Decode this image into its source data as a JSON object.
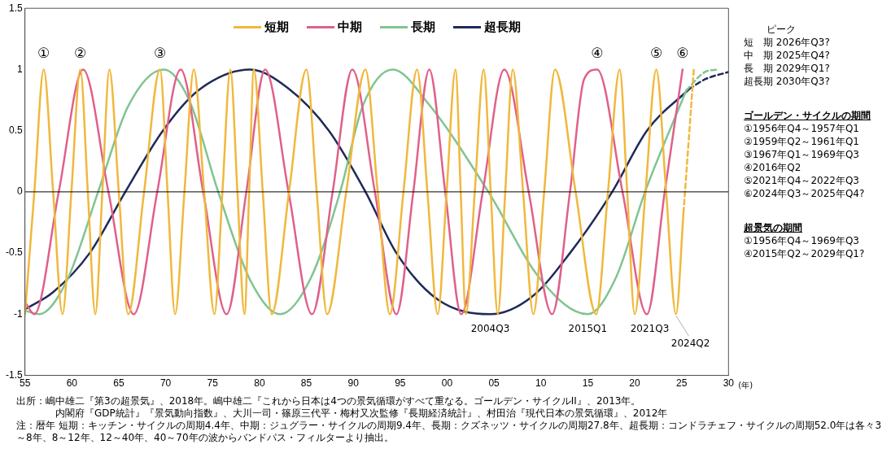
{
  "chart_data": {
    "type": "line",
    "xlabel": "(年)",
    "xlim": [
      1955,
      2030
    ],
    "xticks": [
      {
        "value": 1955,
        "label": "55"
      },
      {
        "value": 1960,
        "label": "60"
      },
      {
        "value": 1965,
        "label": "65"
      },
      {
        "value": 1970,
        "label": "70"
      },
      {
        "value": 1975,
        "label": "75"
      },
      {
        "value": 1980,
        "label": "80"
      },
      {
        "value": 1985,
        "label": "85"
      },
      {
        "value": 1990,
        "label": "90"
      },
      {
        "value": 1995,
        "label": "95"
      },
      {
        "value": 2000,
        "label": "00"
      },
      {
        "value": 2005,
        "label": "05"
      },
      {
        "value": 2010,
        "label": "10"
      },
      {
        "value": 2015,
        "label": "15"
      },
      {
        "value": 2020,
        "label": "20"
      },
      {
        "value": 2025,
        "label": "25"
      },
      {
        "value": 2030,
        "label": "30"
      }
    ],
    "ylim": [
      -1.5,
      1.5
    ],
    "yticks": [
      -1.5,
      -1,
      -0.5,
      0,
      0.5,
      1,
      1.5
    ],
    "grid": false,
    "legend": "top",
    "marker": "none",
    "ref_lines": [
      {
        "axis": "y",
        "value": 0,
        "color": "#000000"
      }
    ],
    "series": [
      {
        "name": "短期",
        "color": "#f0b83c",
        "x": [
          1955,
          1956,
          1957,
          1958,
          1959,
          1959.95,
          1960.9,
          1961.7,
          1962.5,
          1963.25,
          1964,
          1965,
          1966,
          1967.7,
          1969.4,
          1970.2,
          1971,
          1972,
          1973,
          1974.1,
          1975.2,
          1976.05,
          1976.9,
          1977.65,
          1978.4,
          1978.9,
          1979.4,
          1980.35,
          1981.3,
          1983.15,
          1985,
          1986.1,
          1987.2,
          1989.25,
          1991.3,
          1992.6,
          1993.9,
          1995.35,
          1996.8,
          1997.9,
          1999,
          1999.95,
          2000.9,
          2001.45,
          2002,
          2002.95,
          2003.9,
          2004.65,
          2005.4,
          2006.2,
          2007,
          2008.1,
          2009.2,
          2010.35,
          2011.5,
          2013.7,
          2015.9,
          2017.15,
          2018.4,
          2019.2,
          2020,
          2021.15,
          2022.3,
          2023.35,
          2024.4,
          2025.2
        ],
        "values": [
          -1,
          0,
          1,
          0,
          -1,
          0,
          1,
          0,
          -1,
          0,
          1,
          0,
          -1,
          0,
          1,
          0,
          -1,
          0,
          1,
          0,
          -1,
          0,
          1,
          0,
          -1,
          0,
          1,
          0,
          -1,
          0,
          1,
          0,
          -1,
          0,
          1,
          0,
          -1,
          0,
          1,
          0,
          -1,
          0,
          1,
          0,
          -1,
          0,
          1,
          0,
          -1,
          0,
          1,
          0,
          -1,
          0,
          1,
          0,
          -1,
          0,
          1,
          0,
          -1,
          0,
          1,
          0,
          -1,
          -0.17
        ]
      },
      {
        "color": "#f0b83c",
        "line_style": "dashed",
        "x": [
          2025.2,
          2026.3
        ],
        "values": [
          -0.17,
          1
        ]
      },
      {
        "name": "中期",
        "color": "#e0608a",
        "x": [
          1955,
          1956,
          1958.6,
          1961.2,
          1963.9,
          1966.6,
          1969.1,
          1971.6,
          1974,
          1976.5,
          1978.6,
          1980.6,
          1983.1,
          1985.6,
          1987.8,
          1989.9,
          1992.3,
          1994.6,
          1996.4,
          1998.1,
          1999.8,
          2001.5,
          2003.8,
          2006.1,
          2008.7,
          2011.2,
          2013.1,
          2014.6,
          2016,
          2018.7,
          2021.3,
          2023.2,
          2025.1
        ],
        "values": [
          -0.9,
          -1,
          0,
          1,
          0,
          -1,
          0,
          1,
          0,
          -1,
          0,
          1,
          0,
          -1,
          0,
          1,
          0,
          -1,
          0,
          1,
          0,
          -1,
          0,
          1,
          0,
          -1,
          0,
          0.92,
          1,
          0,
          -1,
          0,
          1
        ]
      },
      {
        "name": "長期",
        "color": "#80c490",
        "x": [
          1955,
          1956.5,
          1959.5,
          1962.8,
          1966,
          1969.8,
          1972.5,
          1975.6,
          1979,
          1982.2,
          1985.5,
          1988.6,
          1991,
          1994.2,
          1998,
          2004.4,
          2010,
          2015,
          2018,
          2021.1,
          2025.5
        ],
        "values": [
          -0.97,
          -1,
          -0.72,
          0,
          0.7,
          1,
          0.75,
          0,
          -0.72,
          -1,
          -0.7,
          0,
          0.7,
          1,
          0.72,
          0,
          -0.72,
          -1,
          -0.7,
          0,
          0.83
        ]
      },
      {
        "color": "#80c490",
        "line_style": "dashed",
        "x": [
          2025.5,
          2027.5,
          2028.9
        ],
        "values": [
          0.83,
          0.98,
          1
        ]
      },
      {
        "name": "超長期",
        "color": "#1f2a5a",
        "x": [
          1955,
          1958,
          1961.9,
          1965.7,
          1969.7,
          1973.5,
          1979,
          1983,
          1987.4,
          1991.3,
          1994.6,
          1999,
          2004.6,
          2009,
          2013.1,
          2017.6,
          2021.3,
          2025.8
        ],
        "values": [
          -0.96,
          -0.82,
          -0.5,
          0,
          0.5,
          0.83,
          1,
          0.85,
          0.5,
          0,
          -0.5,
          -0.88,
          -1,
          -0.86,
          -0.5,
          0,
          0.5,
          0.84
        ]
      },
      {
        "color": "#1f2a5a",
        "line_style": "dashed",
        "x": [
          2025.8,
          2027.5,
          2030
        ],
        "values": [
          0.84,
          0.92,
          0.98
        ]
      }
    ],
    "annotations": [
      {
        "text": "①",
        "x": 1957,
        "y": 1
      },
      {
        "text": "②",
        "x": 1960.9,
        "y": 1
      },
      {
        "text": "③",
        "x": 1969.4,
        "y": 1
      },
      {
        "text": "④",
        "x": 2016,
        "y": 1
      },
      {
        "text": "⑤",
        "x": 2022.3,
        "y": 1
      },
      {
        "text": "⑥",
        "x": 2025.1,
        "y": 1
      },
      {
        "text": "2004Q3",
        "x": 2004.6,
        "y": -1
      },
      {
        "text": "2015Q1",
        "x": 2015,
        "y": -1
      },
      {
        "text": "2021Q3",
        "x": 2021.6,
        "y": -1
      },
      {
        "text": "2024Q2",
        "x": 2024.4,
        "y": -1
      },
      "ピーク",
      "短　期  2026年Q3?",
      "中　期  2025年Q4?",
      "長　期  2029年Q1?",
      "超長期  2030年Q3?",
      "ゴールデン・サイクルの期間",
      "①1956年Q4～1957年Q1",
      "②1959年Q2～1961年Q1",
      "③1967年Q1～1969年Q3",
      "④2016年Q2",
      "⑤2021年Q4～2022年Q3",
      "⑥2024年Q3～2025年Q4?",
      "超景気の期間",
      "①1956年Q4～1969年Q3",
      "④2015年Q2～2029年Q1?",
      "出所：嶋中雄二『第3の超景気』、2018年。嶋中雄二『これから日本は4つの景気循環がすべて重なる。ゴールデン・サイクルII』、2013年。",
      "内閣府『GDP統計』『景気動向指数』、大川一司・篠原三代平・梅村又次監修『長期経済統計』、村田治『現代日本の景気循環』、2012年",
      "注：暦年 短期：キッチン・サイクルの周期4.4年、中期：ジュグラー・サイクルの周期9.4年、長期：クズネッツ・サイクルの周期27.8年、超長期：コンドラチェフ・サイクルの周期52.0年は各々3～8年、8～12年、12～40年、40～70年の波からバンドパス・フィルターより抽出。"
    ]
  }
}
